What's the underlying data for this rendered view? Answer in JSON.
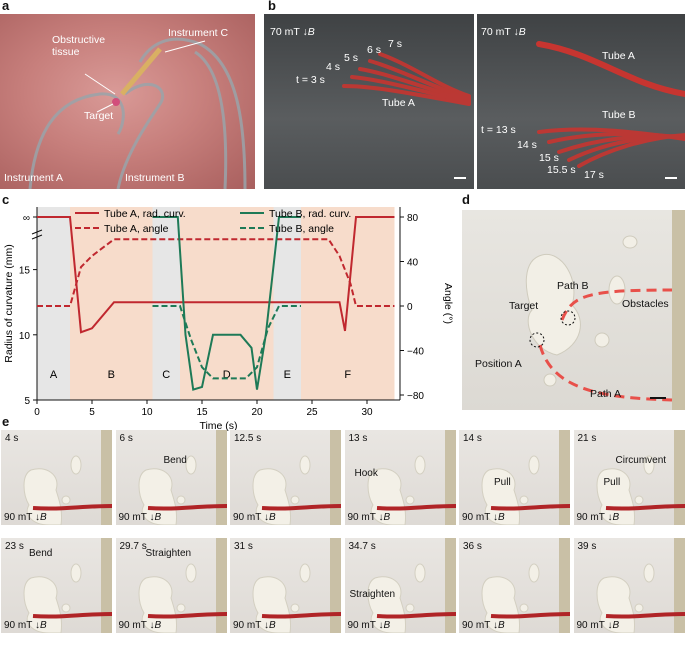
{
  "panel_a": {
    "letter": "a",
    "labels": {
      "obstructive": "Obstructive tissue",
      "instrument_c": "Instrument C",
      "target": "Target",
      "instrument_a": "Instrument A",
      "instrument_b": "Instrument B"
    }
  },
  "panel_b": {
    "letter": "b",
    "left": {
      "field": "70 mT",
      "field_symbol": "B",
      "times": [
        "t = 3 s",
        "4 s",
        "5 s",
        "6 s",
        "7 s"
      ],
      "tube": "Tube A"
    },
    "right": {
      "field": "70 mT",
      "field_symbol": "B",
      "tube_a": "Tube A",
      "tube_b": "Tube B",
      "times": [
        "t = 13 s",
        "14 s",
        "15 s",
        "15.5 s",
        "17 s"
      ]
    }
  },
  "panel_c": {
    "letter": "c",
    "chart_data": {
      "type": "line",
      "xlabel": "Time (s)",
      "ylabel_left": "Radius of curvature (mm)",
      "ylabel_right": "Angle (°)",
      "xlim": [
        0,
        33
      ],
      "xticks": [
        0,
        5,
        10,
        15,
        20,
        25,
        30
      ],
      "yticks_left": [
        "5",
        "10",
        "15",
        "∞"
      ],
      "yticks_right": [
        "80",
        "40",
        "0",
        "−40",
        "−80"
      ],
      "phases": [
        {
          "label": "A",
          "x0": 0,
          "x1": 3,
          "color": "#e6e6e6"
        },
        {
          "label": "B",
          "x0": 3,
          "x1": 10.5,
          "color": "#f7dccb"
        },
        {
          "label": "C",
          "x0": 10.5,
          "x1": 13,
          "color": "#e6e6e6"
        },
        {
          "label": "D",
          "x0": 13,
          "x1": 21.5,
          "color": "#f7dccb"
        },
        {
          "label": "E",
          "x0": 21.5,
          "x1": 24,
          "color": "#e6e6e6"
        },
        {
          "label": "F",
          "x0": 24,
          "x1": 32.5,
          "color": "#f7dccb"
        }
      ],
      "series": [
        {
          "name": "Tube A, rad. curv.",
          "axis": "left",
          "color": "#c0282f",
          "dash": false,
          "x": [
            0,
            3,
            4,
            5,
            7,
            27.5,
            28,
            29,
            32.5
          ],
          "y": [
            "inf",
            "inf",
            10.2,
            10.5,
            12.5,
            12.5,
            10.3,
            "inf",
            "inf"
          ]
        },
        {
          "name": "Tube A, angle",
          "axis": "right",
          "color": "#c0282f",
          "dash": true,
          "x": [
            0,
            3,
            4,
            5,
            7,
            26.5,
            27.5,
            28.5,
            29,
            32.5
          ],
          "y": [
            0,
            0,
            35,
            45,
            60,
            60,
            45,
            20,
            0,
            0
          ]
        },
        {
          "name": "Tube B, rad. curv.",
          "axis": "left",
          "color": "#1e7a57",
          "dash": false,
          "x": [
            10.5,
            12.8,
            13.5,
            14.2,
            15,
            16,
            18.5,
            19.5,
            20,
            20.8,
            22,
            24
          ],
          "y": [
            "inf",
            "inf",
            10,
            5.8,
            6,
            10,
            10,
            9,
            5.8,
            10,
            "inf",
            "inf"
          ]
        },
        {
          "name": "Tube B, angle",
          "axis": "right",
          "color": "#1e7a57",
          "dash": true,
          "x": [
            10.5,
            13,
            14,
            15,
            16,
            19,
            20,
            21,
            22,
            24
          ],
          "y": [
            0,
            0,
            -30,
            -55,
            -65,
            -65,
            -55,
            -20,
            0,
            0
          ]
        }
      ]
    }
  },
  "panel_d": {
    "letter": "d",
    "labels": {
      "path_b": "Path B",
      "target": "Target",
      "obstacles": "Obstacles",
      "position_a": "Position A",
      "path_a": "Path A"
    }
  },
  "panel_e": {
    "letter": "e",
    "field": "90 mT",
    "field_symbol": "B",
    "frames": [
      {
        "time": "4 s",
        "annotation": ""
      },
      {
        "time": "6 s",
        "annotation": "Bend"
      },
      {
        "time": "12.5 s",
        "annotation": ""
      },
      {
        "time": "13 s",
        "annotation": "Hook"
      },
      {
        "time": "14 s",
        "annotation": "Pull"
      },
      {
        "time": "21 s",
        "annotation": "Pull",
        "annotation2": "Circumvent"
      },
      {
        "time": "23 s",
        "annotation": "Bend"
      },
      {
        "time": "29.7 s",
        "annotation": "Straighten"
      },
      {
        "time": "31 s",
        "annotation": ""
      },
      {
        "time": "34.7 s",
        "annotation": "Straighten"
      },
      {
        "time": "36 s",
        "annotation": ""
      },
      {
        "time": "39 s",
        "annotation": ""
      }
    ]
  }
}
